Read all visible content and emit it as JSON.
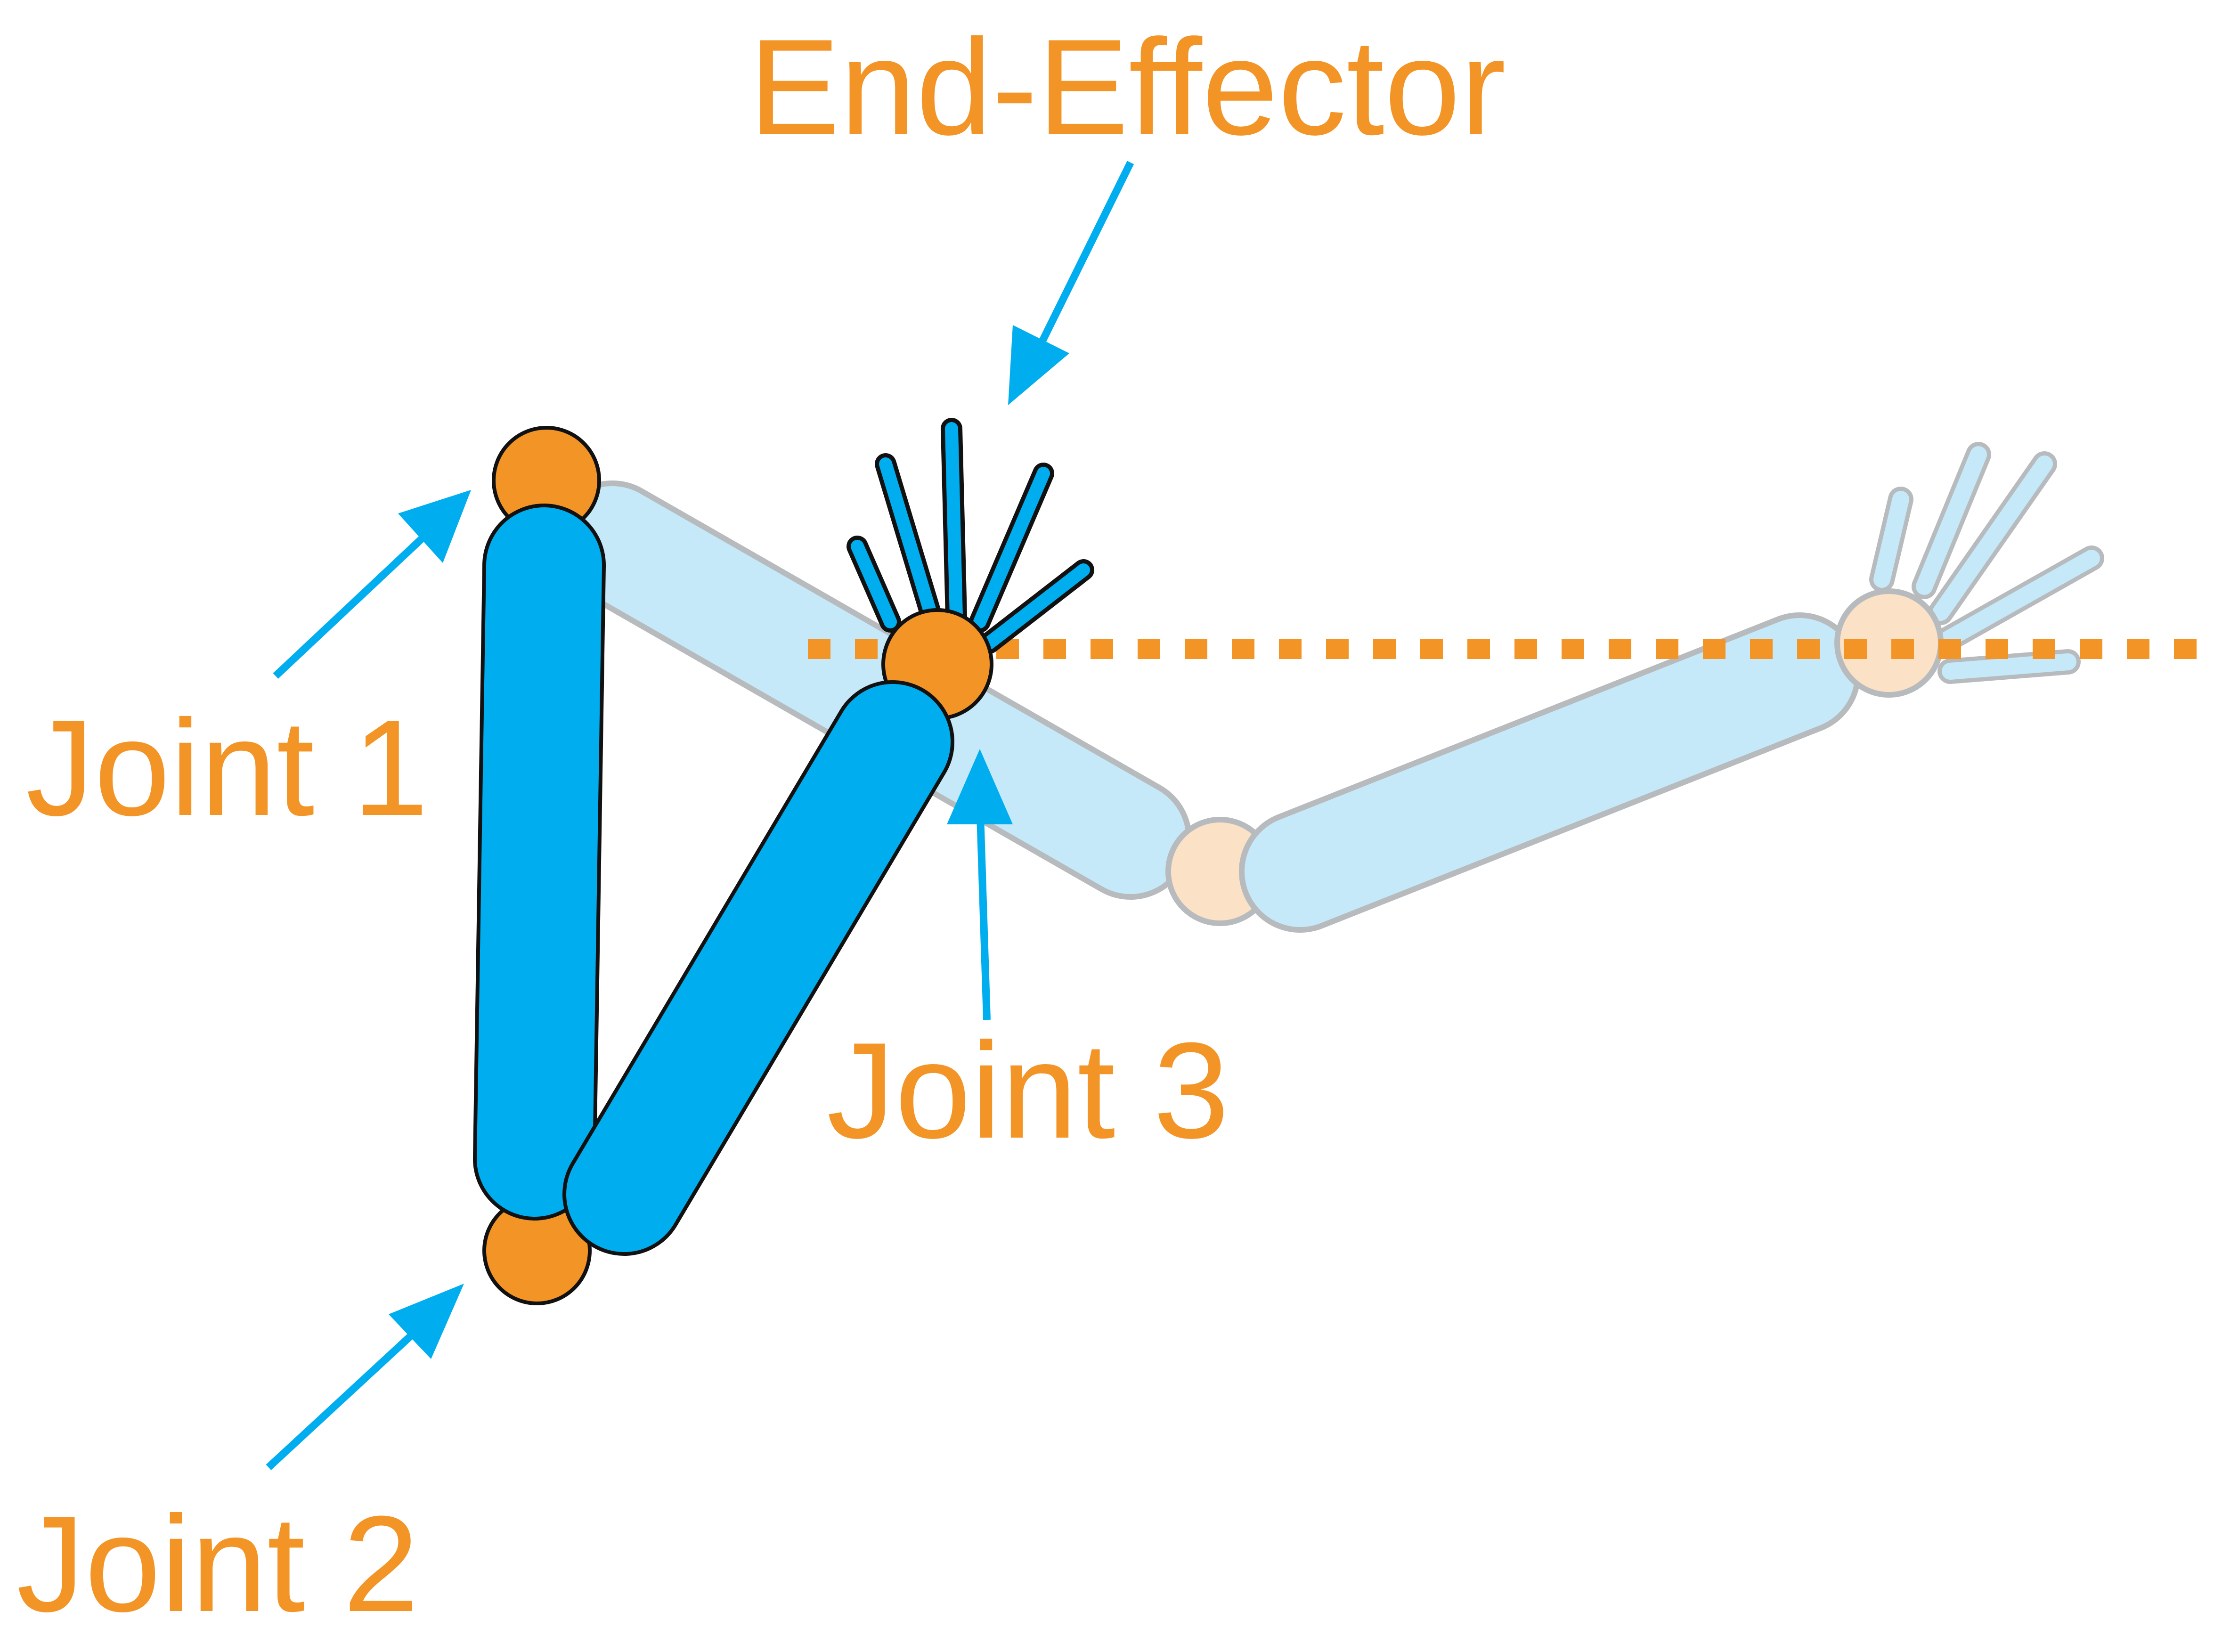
{
  "labels": {
    "end_effector": "End-Effector",
    "joint1": "Joint 1",
    "joint2": "Joint 2",
    "joint3": "Joint 3"
  },
  "colors": {
    "link": "#00aeef",
    "link_ghost": "#c2e8f8",
    "joint": "#f39426",
    "joint_ghost": "#fbe0c4",
    "arrow": "#00aeef",
    "label": "#f39426",
    "guide_line": "#f39426",
    "outline": "#111111"
  },
  "icons": {
    "arrow": "arrow-icon",
    "gripper": "gripper-icon"
  }
}
